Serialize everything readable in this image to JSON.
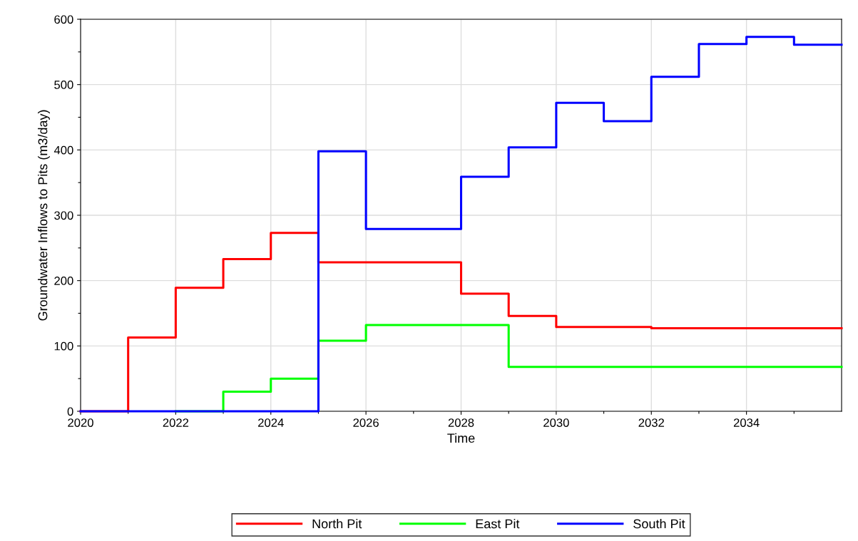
{
  "chart_data": {
    "type": "step",
    "xlabel": "Time",
    "ylabel": "Groundwater Inflows to Pits (m3/day)",
    "x": [
      2020,
      2021,
      2022,
      2023,
      2024,
      2025,
      2026,
      2027,
      2028,
      2029,
      2030,
      2031,
      2032,
      2033,
      2034,
      2035,
      2036
    ],
    "series": [
      {
        "name": "North Pit",
        "color": "#ff0000",
        "values": [
          0,
          113,
          189,
          233,
          273,
          228,
          228,
          228,
          180,
          146,
          129,
          129,
          127,
          127,
          127,
          127,
          127
        ]
      },
      {
        "name": "East Pit",
        "color": "#00ff00",
        "values": [
          null,
          null,
          0,
          30,
          50,
          108,
          132,
          132,
          132,
          68,
          68,
          68,
          68,
          68,
          68,
          68,
          68
        ]
      },
      {
        "name": "South Pit",
        "color": "#0000ff",
        "values": [
          0,
          0,
          0,
          0,
          0,
          398,
          279,
          279,
          359,
          404,
          472,
          444,
          512,
          562,
          573,
          561,
          561
        ]
      }
    ],
    "xlim": [
      2020,
      2036
    ],
    "xticks": [
      2020,
      {
        "value": 2021,
        "label": null
      },
      2022,
      {
        "value": 2023,
        "label": null
      },
      2024,
      {
        "value": 2025,
        "label": null
      },
      2026,
      {
        "value": 2027,
        "label": null
      },
      2028,
      {
        "value": 2029,
        "label": null
      },
      2030,
      {
        "value": 2031,
        "label": null
      },
      2032,
      {
        "value": 2033,
        "label": null
      },
      2034,
      {
        "value": 2035,
        "label": null
      }
    ],
    "ylim": [
      0,
      600
    ],
    "yticks": [
      0,
      {
        "value": 50,
        "label": null
      },
      100,
      {
        "value": 150,
        "label": null
      },
      200,
      {
        "value": 250,
        "label": null
      },
      300,
      {
        "value": 350,
        "label": null
      },
      400,
      {
        "value": 450,
        "label": null
      },
      500,
      {
        "value": 550,
        "label": null
      },
      600
    ],
    "grid": true,
    "legend": "bottom",
    "line_style": "solid",
    "marker": "none"
  }
}
